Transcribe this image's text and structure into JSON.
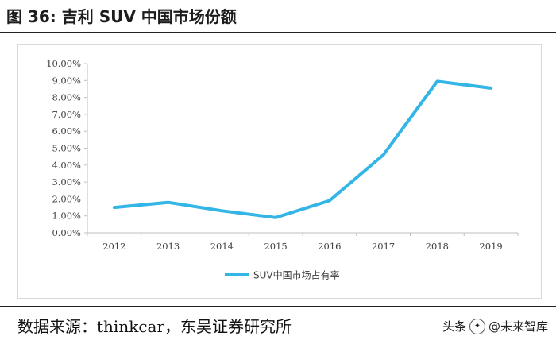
{
  "title": "图 36:  吉利 SUV 中国市场份额",
  "source": "数据来源：thinkcar，东吴证券研究所",
  "watermark": {
    "prefix": "头条",
    "name": "@未来智库"
  },
  "chart_data": {
    "type": "line",
    "categories": [
      "2012",
      "2013",
      "2014",
      "2015",
      "2016",
      "2017",
      "2018",
      "2019"
    ],
    "series": [
      {
        "name": "SUV中国市场占有率",
        "values": [
          1.5,
          1.8,
          1.3,
          0.9,
          1.9,
          4.6,
          8.95,
          8.55
        ],
        "color": "#33b5e5"
      }
    ],
    "ylim": [
      0,
      10
    ],
    "ytick_step": 1,
    "ytick_format": "percent_2dp",
    "grid": false,
    "legend": "bottom"
  }
}
